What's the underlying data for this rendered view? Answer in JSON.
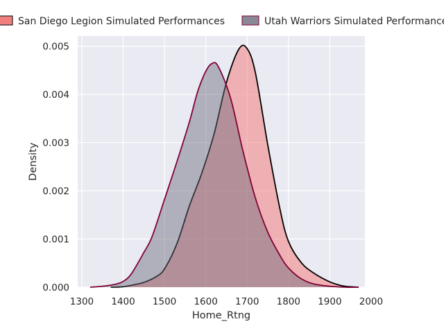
{
  "chart_data": {
    "type": "area",
    "title": "",
    "xlabel": "Home_Rtng",
    "ylabel": "Density",
    "xlim": [
      1290,
      1985
    ],
    "ylim": [
      0,
      0.00521
    ],
    "xticks": [
      "1300",
      "1400",
      "1500",
      "1600",
      "1700",
      "1800",
      "1900",
      "2000"
    ],
    "yticks": [
      "0.000",
      "0.001",
      "0.002",
      "0.003",
      "0.004",
      "0.005"
    ],
    "grid": true,
    "legend_position": "top",
    "series": [
      {
        "name": "San Diego Legion Simulated Performances",
        "fill_color": "#f08080",
        "fill_opacity": 0.55,
        "line_color": "#000000",
        "x": [
          1370,
          1400,
          1420,
          1450,
          1480,
          1500,
          1530,
          1560,
          1590,
          1620,
          1650,
          1680,
          1700,
          1720,
          1750,
          1780,
          1800,
          1830,
          1860,
          1900,
          1930,
          1950,
          1970
        ],
        "y": [
          0.0,
          1e-05,
          4e-05,
          0.0001,
          0.00022,
          0.00038,
          0.0009,
          0.00168,
          0.00236,
          0.00318,
          0.00425,
          0.00494,
          0.00495,
          0.00445,
          0.00295,
          0.0016,
          0.00095,
          0.00052,
          0.0003,
          0.00011,
          3e-05,
          1e-05,
          0.0
        ]
      },
      {
        "name": "Utah Warriors Simulated Performances",
        "fill_color": "#6b6b7b",
        "fill_opacity": 0.45,
        "line_color": "#800035",
        "x": [
          1320,
          1350,
          1380,
          1400,
          1420,
          1450,
          1470,
          1500,
          1530,
          1560,
          1580,
          1600,
          1615,
          1630,
          1660,
          1690,
          1720,
          1750,
          1780,
          1800,
          1830,
          1860,
          1900,
          1940,
          1970
        ],
        "y": [
          0.0,
          2e-05,
          6e-05,
          0.00012,
          0.00028,
          0.00072,
          0.00105,
          0.00182,
          0.0026,
          0.00342,
          0.00405,
          0.00448,
          0.00464,
          0.00458,
          0.00392,
          0.00282,
          0.00185,
          0.00114,
          0.00065,
          0.0004,
          0.00018,
          7e-05,
          2e-05,
          0.0,
          0.0
        ]
      }
    ]
  }
}
